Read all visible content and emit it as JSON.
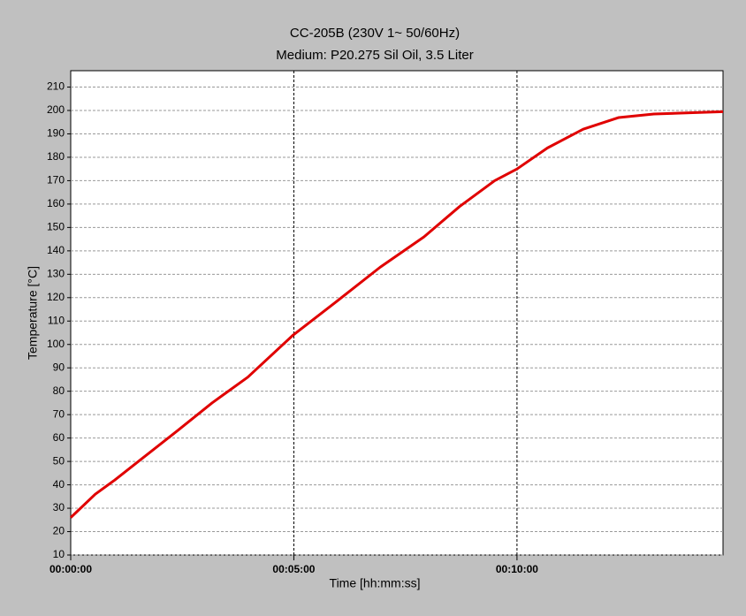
{
  "chart_data": {
    "type": "line",
    "title": "CC-205B (230V 1~ 50/60Hz)",
    "subtitle": "Medium: P20.275 Sil Oil, 3.5 Liter",
    "x_label": "Time [hh:mm:ss]",
    "y_label": "Temperature [°C]",
    "x": [
      0,
      33,
      59,
      95,
      143,
      190,
      238,
      299,
      356,
      416,
      475,
      523,
      570,
      600,
      641,
      689,
      737,
      784,
      832,
      877
    ],
    "series": [
      {
        "color": "#e00000",
        "values": [
          26,
          36,
          42,
          51,
          63,
          75,
          86,
          104,
          118,
          133,
          146,
          159,
          170,
          175,
          184,
          192,
          197,
          198.5,
          199,
          199.5
        ]
      }
    ],
    "xlim": [
      0,
      877
    ],
    "xticks": [
      {
        "value": 0,
        "label": "00:00:00"
      },
      {
        "value": 300,
        "label": "00:05:00"
      },
      {
        "value": 600,
        "label": "00:10:00"
      }
    ],
    "ylim": [
      10,
      217
    ],
    "yticks": [
      10,
      20,
      30,
      40,
      50,
      60,
      70,
      80,
      90,
      100,
      110,
      120,
      130,
      140,
      150,
      160,
      170,
      180,
      190,
      200,
      210
    ],
    "grid": true
  }
}
